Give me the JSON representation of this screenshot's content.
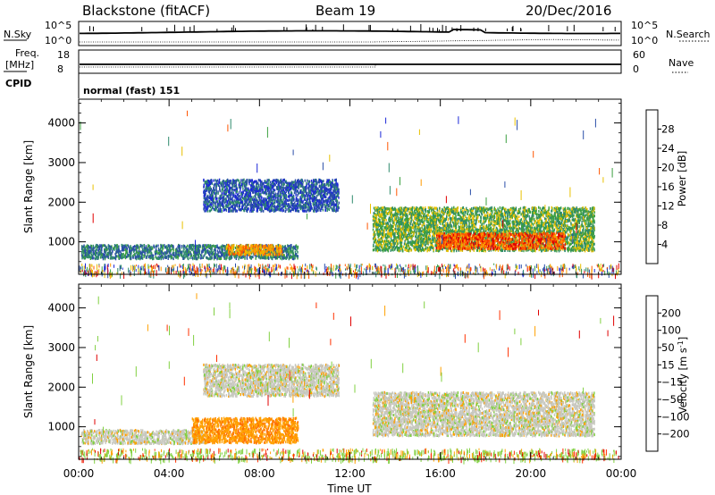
{
  "header": {
    "title": "Blackstone (fitACF)",
    "beam": "Beam 19",
    "date": "20/Dec/2016"
  },
  "params": {
    "nsky_label": "N.Sky",
    "nsearch_label": "N.Search",
    "ylim_nsky": [
      "10^5",
      "10^0"
    ],
    "ylim_nsearch": [
      "10^5",
      "10^0"
    ],
    "freq_label": "Freq.",
    "freq_unit": "[MHz]",
    "freq_ticks": [
      "18",
      "8"
    ],
    "nave_label": "Nave",
    "nave_ticks": [
      "60",
      "0"
    ],
    "cpid_label": "CPID",
    "cpid_value": "normal (fast) 151"
  },
  "chart_data": [
    {
      "type": "heatmap",
      "name": "power",
      "ylabel": "Slant Range [km]",
      "yticks": [
        "4000",
        "3000",
        "2000",
        "1000"
      ],
      "ylim": [
        180,
        4600
      ],
      "colorbar": {
        "label": "Power [dB]",
        "ticks": [
          "28",
          "24",
          "20",
          "16",
          "12",
          "8",
          "4"
        ],
        "colors": [
          "#e00000",
          "#ff5500",
          "#ff9900",
          "#e8c000",
          "#3ca040",
          "#2e8a6c",
          "#2a4ea8",
          "#1c28d8"
        ]
      },
      "regions": [
        {
          "t0": 0.1,
          "t1": 9.7,
          "r0": 600,
          "r1": 950,
          "level": 9
        },
        {
          "t0": 6.5,
          "t1": 9.0,
          "r0": 700,
          "r1": 950,
          "level": 22
        },
        {
          "t0": 5.5,
          "t1": 11.5,
          "r0": 1800,
          "r1": 2600,
          "level": 6
        },
        {
          "t0": 13.0,
          "t1": 22.8,
          "r0": 800,
          "r1": 1900,
          "level": 14
        },
        {
          "t0": 15.8,
          "t1": 21.5,
          "r0": 850,
          "r1": 1250,
          "level": 26
        }
      ]
    },
    {
      "type": "heatmap",
      "name": "velocity",
      "ylabel": "Slant Range [km]",
      "yticks": [
        "4000",
        "3000",
        "2000",
        "1000"
      ],
      "ylim": [
        180,
        4600
      ],
      "colorbar": {
        "label": "Velocity [m s",
        "label_sup": "-1",
        "label_end": "]",
        "ticks": [
          "200",
          "100",
          "50",
          "15",
          "-15",
          "-50",
          "-100",
          "-200"
        ],
        "colors": [
          "#2040c8",
          "#2c8870",
          "#3ca040",
          "#80d040",
          "#c8c8c0",
          "#ffa000",
          "#ff7000",
          "#ff3000",
          "#e00000"
        ]
      },
      "regions": [
        {
          "t0": 0.1,
          "t1": 5.5,
          "r0": 600,
          "r1": 950,
          "vel": 0
        },
        {
          "t0": 5.0,
          "t1": 9.7,
          "r0": 620,
          "r1": 1250,
          "vel": -40
        },
        {
          "t0": 5.5,
          "t1": 11.5,
          "r0": 1800,
          "r1": 2600,
          "vel": 0
        },
        {
          "t0": 13.0,
          "t1": 22.8,
          "r0": 800,
          "r1": 1900,
          "vel": 0
        }
      ],
      "xticks": [
        "00:00",
        "04:00",
        "08:00",
        "12:00",
        "16:00",
        "20:00",
        "00:00"
      ],
      "xlabel": "Time UT",
      "xlim": [
        0,
        24
      ]
    }
  ]
}
